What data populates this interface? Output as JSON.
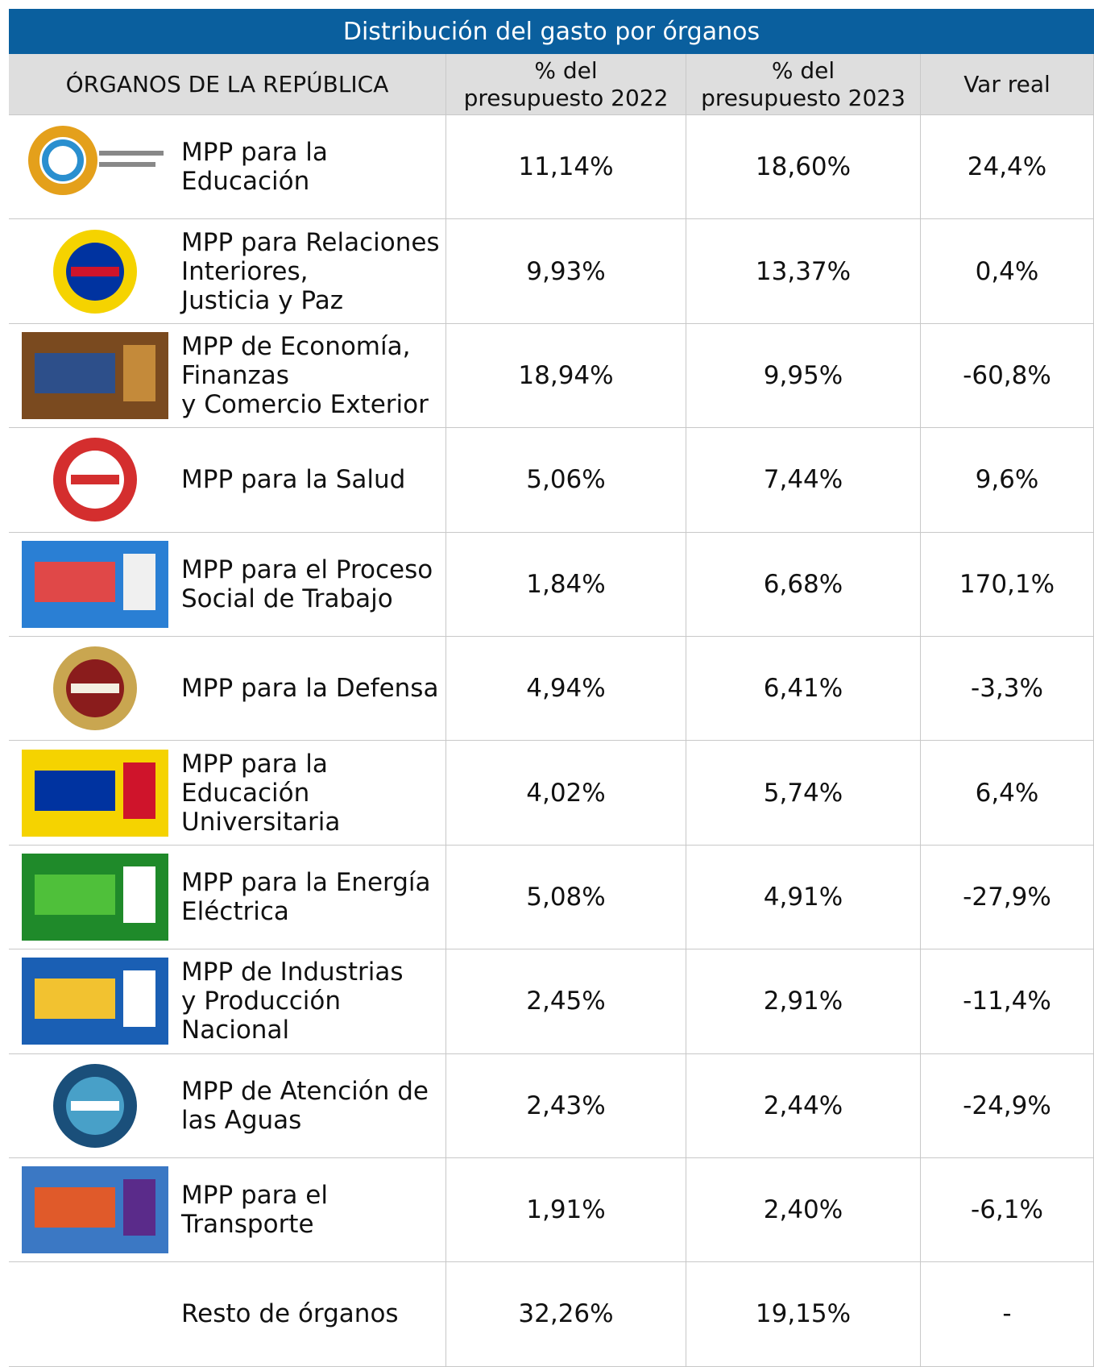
{
  "title": "Distribución del gasto por órganos",
  "table": {
    "headers": [
      "ÓRGANOS DE LA REPÚBLICA",
      "% del\npresupuesto 2022",
      "% del\npresupuesto 2023",
      "Var real"
    ],
    "rows": [
      [
        "MPP para la Educación",
        "11,14%",
        "18,60%",
        "24,4%"
      ],
      [
        "MPP para Relaciones\nInteriores,\nJusticia y Paz",
        "9,93%",
        "13,37%",
        "0,4%"
      ],
      [
        "MPP de Economía,\nFinanzas\ny Comercio Exterior",
        "18,94%",
        "9,95%",
        "-60,8%"
      ],
      [
        "MPP para la Salud",
        "5,06%",
        "7,44%",
        "9,6%"
      ],
      [
        "MPP para el Proceso\nSocial de Trabajo",
        "1,84%",
        "6,68%",
        "170,1%"
      ],
      [
        "MPP para la Defensa",
        "4,94%",
        "6,41%",
        "-3,3%"
      ],
      [
        "MPP para la Educación\nUniversitaria",
        "4,02%",
        "5,74%",
        "6,4%"
      ],
      [
        "MPP para la Energía\nEléctrica",
        "5,08%",
        "4,91%",
        "-27,9%"
      ],
      [
        "MPP de Industrias\ny Producción\nNacional",
        "2,45%",
        "2,91%",
        "-11,4%"
      ],
      [
        "MPP de Atención de\nlas Aguas",
        "2,43%",
        "2,44%",
        "-24,9%"
      ],
      [
        "MPP para el\nTransporte",
        "1,91%",
        "2,40%",
        "-6,1%"
      ],
      [
        "Resto de órganos",
        "32,26%",
        "19,15%",
        "-"
      ]
    ]
  }
}
